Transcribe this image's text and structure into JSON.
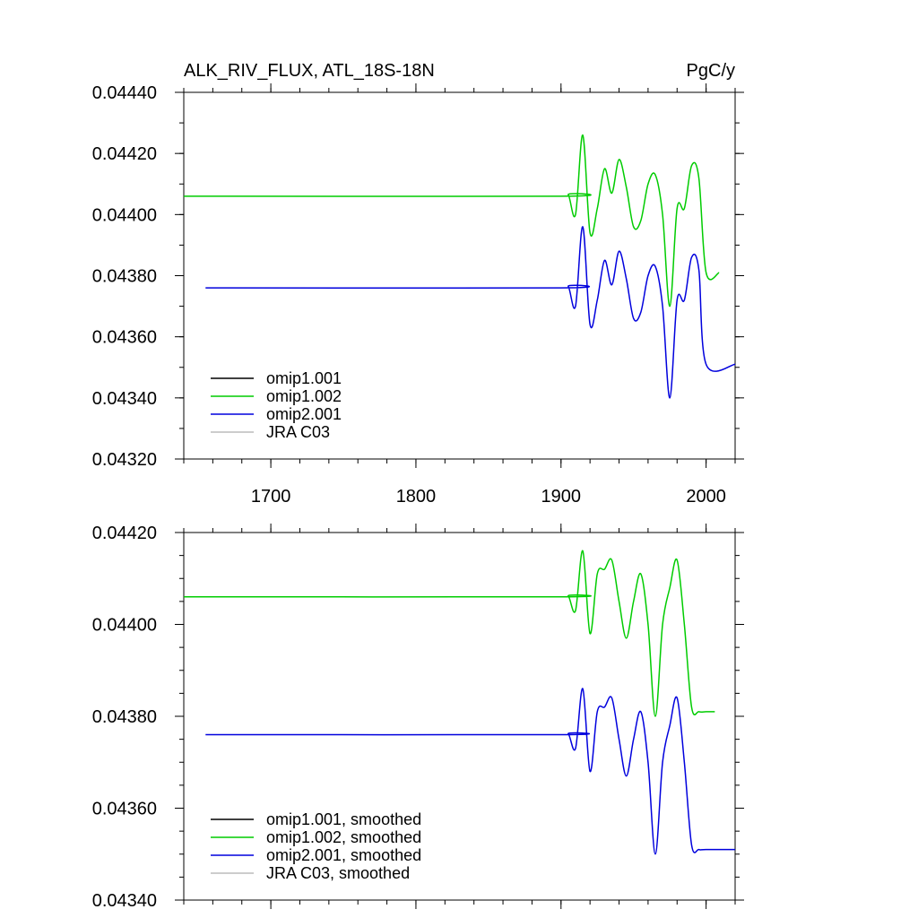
{
  "chart_data": [
    {
      "type": "line",
      "title": "ALK_RIV_FLUX, ATL_18S-18N",
      "units": "PgC/y",
      "xlim": [
        1640,
        2020
      ],
      "ylim": [
        0.0432,
        0.0444
      ],
      "x_ticks": [
        1700,
        1800,
        1900,
        2000
      ],
      "x_tick_labels": [
        "1700",
        "1800",
        "1900",
        "2000"
      ],
      "y_ticks": [
        0.0432,
        0.0434,
        0.0436,
        0.0438,
        0.044,
        0.0442,
        0.0444
      ],
      "y_tick_labels": [
        "0.04320",
        "0.04340",
        "0.04360",
        "0.04380",
        "0.04400",
        "0.04420",
        "0.04440"
      ],
      "legend_position": "bottom-left",
      "series": [
        {
          "name": "omip1.001",
          "color": "#000000",
          "x": [],
          "y": []
        },
        {
          "name": "omip1.002",
          "color": "#00cc00",
          "x": [
            1640,
            1900,
            1905,
            1910,
            1915,
            1920,
            1925,
            1930,
            1935,
            1940,
            1945,
            1950,
            1955,
            1960,
            1965,
            1970,
            1975,
            1980,
            1985,
            1990,
            1995,
            2000,
            2009
          ],
          "y": [
            0.04406,
            0.04406,
            0.044065,
            0.044,
            0.04426,
            0.04394,
            0.04402,
            0.04415,
            0.04407,
            0.04418,
            0.04409,
            0.04396,
            0.04398,
            0.0441,
            0.04413,
            0.044,
            0.0437,
            0.04402,
            0.04402,
            0.04416,
            0.04412,
            0.04381,
            0.04381
          ]
        },
        {
          "name": "omip2.001",
          "color": "#0000dd",
          "x": [
            1655,
            1900,
            1905,
            1910,
            1915,
            1920,
            1925,
            1930,
            1935,
            1940,
            1945,
            1950,
            1955,
            1960,
            1965,
            1970,
            1975,
            1980,
            1985,
            1990,
            1995,
            2000,
            2020
          ],
          "y": [
            0.04376,
            0.04376,
            0.043765,
            0.0437,
            0.04396,
            0.04364,
            0.04372,
            0.04385,
            0.04377,
            0.04388,
            0.04379,
            0.04366,
            0.04368,
            0.0438,
            0.04383,
            0.0437,
            0.0434,
            0.04372,
            0.04372,
            0.04386,
            0.04382,
            0.04351,
            0.04351
          ]
        },
        {
          "name": "JRA C03",
          "color": "#bbbbbb",
          "x": [],
          "y": []
        }
      ]
    },
    {
      "type": "line",
      "title": "",
      "units": "",
      "xlim": [
        1640,
        2020
      ],
      "ylim": [
        0.0434,
        0.0442
      ],
      "x_ticks": [
        1700,
        1800,
        1900,
        2000
      ],
      "x_tick_labels": [],
      "y_ticks": [
        0.0434,
        0.0436,
        0.0438,
        0.044,
        0.0442
      ],
      "y_tick_labels": [
        "0.04340",
        "0.04360",
        "0.04380",
        "0.04400",
        "0.04420"
      ],
      "legend_position": "bottom-left",
      "series": [
        {
          "name": "omip1.001, smoothed",
          "color": "#000000",
          "x": [],
          "y": []
        },
        {
          "name": "omip1.002, smoothed",
          "color": "#00cc00",
          "x": [
            1640,
            1900,
            1905,
            1910,
            1915,
            1920,
            1925,
            1930,
            1935,
            1940,
            1945,
            1950,
            1955,
            1960,
            1965,
            1970,
            1975,
            1980,
            1985,
            1990,
            1995,
            2000,
            2006
          ],
          "y": [
            0.04406,
            0.04406,
            0.044062,
            0.04403,
            0.04416,
            0.04398,
            0.04411,
            0.04412,
            0.04414,
            0.04405,
            0.04397,
            0.04405,
            0.04411,
            0.044,
            0.0438,
            0.044,
            0.04408,
            0.04414,
            0.044,
            0.04382,
            0.04381,
            0.04381,
            0.04381
          ]
        },
        {
          "name": "omip2.001, smoothed",
          "color": "#0000dd",
          "x": [
            1655,
            1900,
            1905,
            1910,
            1915,
            1920,
            1925,
            1930,
            1935,
            1940,
            1945,
            1950,
            1955,
            1960,
            1965,
            1970,
            1975,
            1980,
            1985,
            1990,
            1995,
            2000,
            2020
          ],
          "y": [
            0.04376,
            0.04376,
            0.043762,
            0.04373,
            0.04386,
            0.04368,
            0.04381,
            0.04382,
            0.04384,
            0.04375,
            0.04367,
            0.04375,
            0.04381,
            0.0437,
            0.0435,
            0.0437,
            0.04378,
            0.04384,
            0.0437,
            0.04352,
            0.04351,
            0.04351,
            0.04351
          ]
        },
        {
          "name": "JRA C03, smoothed",
          "color": "#bbbbbb",
          "x": [],
          "y": []
        }
      ]
    }
  ]
}
